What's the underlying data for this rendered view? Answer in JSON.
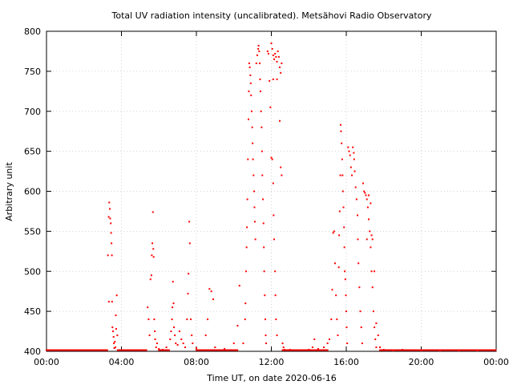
{
  "chart_data": {
    "type": "scatter",
    "title": "Total UV radiation intensity (uncalibrated). Metsähovi Radio Observatory",
    "xlabel": "Time UT, on date 2020-06-16",
    "ylabel": "Arbitrary unit",
    "x_unit": "hours UT",
    "xlim": [
      0,
      24
    ],
    "ylim": [
      400,
      800
    ],
    "x_ticks": [
      0,
      4,
      8,
      12,
      16,
      20,
      24
    ],
    "x_tick_labels": [
      "00:00",
      "04:00",
      "08:00",
      "12:00",
      "16:00",
      "20:00",
      "00:00"
    ],
    "y_ticks": [
      400,
      450,
      500,
      550,
      600,
      650,
      700,
      750,
      800
    ],
    "y_tick_labels": [
      "400",
      "450",
      "500",
      "550",
      "600",
      "650",
      "700",
      "750",
      "800"
    ],
    "grid": true,
    "marker_color": "#ff0000",
    "series": [
      {
        "name": "",
        "points": [
          [
            3.28,
            520
          ],
          [
            3.32,
            568
          ],
          [
            3.35,
            586
          ],
          [
            3.38,
            578
          ],
          [
            3.4,
            566
          ],
          [
            3.43,
            560
          ],
          [
            3.45,
            548
          ],
          [
            3.47,
            535
          ],
          [
            3.49,
            520
          ],
          [
            3.5,
            462
          ],
          [
            3.33,
            462
          ],
          [
            3.52,
            430
          ],
          [
            3.55,
            425
          ],
          [
            3.58,
            418
          ],
          [
            3.6,
            410
          ],
          [
            3.62,
            404
          ],
          [
            3.65,
            412
          ],
          [
            3.68,
            405
          ],
          [
            3.7,
            445
          ],
          [
            3.72,
            428
          ],
          [
            3.75,
            470
          ],
          [
            3.78,
            420
          ],
          [
            5.4,
            455
          ],
          [
            5.45,
            440
          ],
          [
            5.5,
            420
          ],
          [
            5.55,
            490
          ],
          [
            5.6,
            495
          ],
          [
            5.62,
            520
          ],
          [
            5.65,
            535
          ],
          [
            5.68,
            574
          ],
          [
            5.7,
            528
          ],
          [
            5.72,
            518
          ],
          [
            5.75,
            440
          ],
          [
            5.78,
            425
          ],
          [
            5.8,
            415
          ],
          [
            5.85,
            405
          ],
          [
            5.9,
            410
          ],
          [
            6.0,
            403
          ],
          [
            6.2,
            402
          ],
          [
            6.4,
            405
          ],
          [
            6.6,
            415
          ],
          [
            6.65,
            425
          ],
          [
            6.7,
            440
          ],
          [
            6.72,
            455
          ],
          [
            6.75,
            487
          ],
          [
            6.78,
            460
          ],
          [
            6.8,
            430
          ],
          [
            6.85,
            420
          ],
          [
            6.9,
            410
          ],
          [
            7.0,
            408
          ],
          [
            7.1,
            425
          ],
          [
            7.2,
            415
          ],
          [
            7.3,
            410
          ],
          [
            7.4,
            405
          ],
          [
            7.5,
            440
          ],
          [
            7.55,
            472
          ],
          [
            7.58,
            497
          ],
          [
            7.62,
            562
          ],
          [
            7.65,
            535
          ],
          [
            7.7,
            440
          ],
          [
            7.75,
            420
          ],
          [
            7.8,
            410
          ],
          [
            8.0,
            404
          ],
          [
            8.5,
            420
          ],
          [
            8.6,
            440
          ],
          [
            8.7,
            478
          ],
          [
            8.8,
            475
          ],
          [
            8.9,
            465
          ],
          [
            9.0,
            405
          ],
          [
            9.5,
            403
          ],
          [
            10.0,
            410
          ],
          [
            10.2,
            432
          ],
          [
            10.3,
            482
          ],
          [
            10.5,
            410
          ],
          [
            10.6,
            440
          ],
          [
            10.62,
            460
          ],
          [
            10.65,
            500
          ],
          [
            10.68,
            530
          ],
          [
            10.7,
            555
          ],
          [
            10.72,
            590
          ],
          [
            10.75,
            640
          ],
          [
            10.78,
            690
          ],
          [
            10.8,
            725
          ],
          [
            10.82,
            760
          ],
          [
            10.85,
            755
          ],
          [
            10.88,
            745
          ],
          [
            10.9,
            735
          ],
          [
            10.92,
            720
          ],
          [
            10.95,
            700
          ],
          [
            10.98,
            680
          ],
          [
            11.0,
            660
          ],
          [
            11.02,
            640
          ],
          [
            11.05,
            620
          ],
          [
            11.08,
            600
          ],
          [
            11.1,
            580
          ],
          [
            11.12,
            562
          ],
          [
            11.15,
            540
          ],
          [
            11.2,
            760
          ],
          [
            11.25,
            770
          ],
          [
            11.3,
            778
          ],
          [
            11.32,
            782
          ],
          [
            11.35,
            775
          ],
          [
            11.38,
            760
          ],
          [
            11.4,
            740
          ],
          [
            11.42,
            725
          ],
          [
            11.45,
            700
          ],
          [
            11.48,
            680
          ],
          [
            11.5,
            650
          ],
          [
            11.52,
            620
          ],
          [
            11.55,
            590
          ],
          [
            11.58,
            560
          ],
          [
            11.6,
            530
          ],
          [
            11.62,
            500
          ],
          [
            11.65,
            470
          ],
          [
            11.68,
            440
          ],
          [
            11.7,
            420
          ],
          [
            11.72,
            410
          ],
          [
            11.8,
            775
          ],
          [
            11.85,
            772
          ],
          [
            11.9,
            738
          ],
          [
            11.95,
            705
          ],
          [
            12.0,
            642
          ],
          [
            12.05,
            640
          ],
          [
            12.1,
            610
          ],
          [
            12.12,
            570
          ],
          [
            12.15,
            540
          ],
          [
            12.2,
            500
          ],
          [
            12.22,
            470
          ],
          [
            12.25,
            440
          ],
          [
            12.3,
            420
          ],
          [
            12.0,
            785
          ],
          [
            12.05,
            778
          ],
          [
            12.1,
            770
          ],
          [
            12.15,
            765
          ],
          [
            12.2,
            772
          ],
          [
            12.25,
            768
          ],
          [
            12.3,
            762
          ],
          [
            12.35,
            775
          ],
          [
            12.4,
            768
          ],
          [
            12.45,
            755
          ],
          [
            12.5,
            748
          ],
          [
            12.55,
            760
          ],
          [
            12.1,
            740
          ],
          [
            12.3,
            740
          ],
          [
            12.45,
            688
          ],
          [
            12.5,
            630
          ],
          [
            12.55,
            620
          ],
          [
            12.6,
            410
          ],
          [
            12.65,
            405
          ],
          [
            12.7,
            402
          ],
          [
            13.0,
            402
          ],
          [
            14.0,
            402
          ],
          [
            14.2,
            405
          ],
          [
            14.3,
            415
          ],
          [
            14.5,
            403
          ],
          [
            14.8,
            405
          ],
          [
            15.0,
            410
          ],
          [
            15.1,
            415
          ],
          [
            15.2,
            440
          ],
          [
            15.25,
            477
          ],
          [
            15.3,
            548
          ],
          [
            15.35,
            550
          ],
          [
            15.4,
            510
          ],
          [
            15.45,
            470
          ],
          [
            15.5,
            440
          ],
          [
            15.55,
            420
          ],
          [
            15.6,
            505
          ],
          [
            15.62,
            545
          ],
          [
            15.65,
            575
          ],
          [
            15.68,
            620
          ],
          [
            15.7,
            683
          ],
          [
            15.72,
            675
          ],
          [
            15.75,
            660
          ],
          [
            15.78,
            640
          ],
          [
            15.8,
            620
          ],
          [
            15.82,
            600
          ],
          [
            15.85,
            580
          ],
          [
            15.88,
            555
          ],
          [
            15.9,
            530
          ],
          [
            15.92,
            500
          ],
          [
            15.95,
            490
          ],
          [
            15.98,
            470
          ],
          [
            16.0,
            450
          ],
          [
            16.02,
            430
          ],
          [
            16.05,
            410
          ],
          [
            16.1,
            655
          ],
          [
            16.15,
            650
          ],
          [
            16.2,
            645
          ],
          [
            16.25,
            630
          ],
          [
            16.3,
            620
          ],
          [
            16.35,
            655
          ],
          [
            16.4,
            648
          ],
          [
            16.42,
            640
          ],
          [
            16.45,
            625
          ],
          [
            16.5,
            605
          ],
          [
            16.55,
            590
          ],
          [
            16.6,
            570
          ],
          [
            16.62,
            540
          ],
          [
            16.65,
            510
          ],
          [
            16.7,
            480
          ],
          [
            16.75,
            450
          ],
          [
            16.8,
            430
          ],
          [
            16.85,
            410
          ],
          [
            16.9,
            610
          ],
          [
            16.95,
            600
          ],
          [
            17.0,
            598
          ],
          [
            17.05,
            595
          ],
          [
            17.1,
            590
          ],
          [
            17.15,
            580
          ],
          [
            17.2,
            565
          ],
          [
            17.25,
            550
          ],
          [
            17.3,
            530
          ],
          [
            17.35,
            500
          ],
          [
            17.4,
            480
          ],
          [
            17.45,
            450
          ],
          [
            17.5,
            430
          ],
          [
            17.55,
            415
          ],
          [
            17.6,
            405
          ],
          [
            17.1,
            540
          ],
          [
            17.2,
            595
          ],
          [
            17.3,
            585
          ],
          [
            17.35,
            545
          ],
          [
            17.4,
            540
          ],
          [
            17.5,
            500
          ],
          [
            17.6,
            435
          ],
          [
            17.7,
            420
          ],
          [
            17.8,
            405
          ],
          [
            18.0,
            402
          ],
          [
            18.5,
            401
          ],
          [
            19.0,
            402
          ],
          [
            20.0,
            401
          ],
          [
            21.0,
            401
          ],
          [
            22.0,
            401
          ],
          [
            23.0,
            401
          ]
        ]
      }
    ]
  }
}
